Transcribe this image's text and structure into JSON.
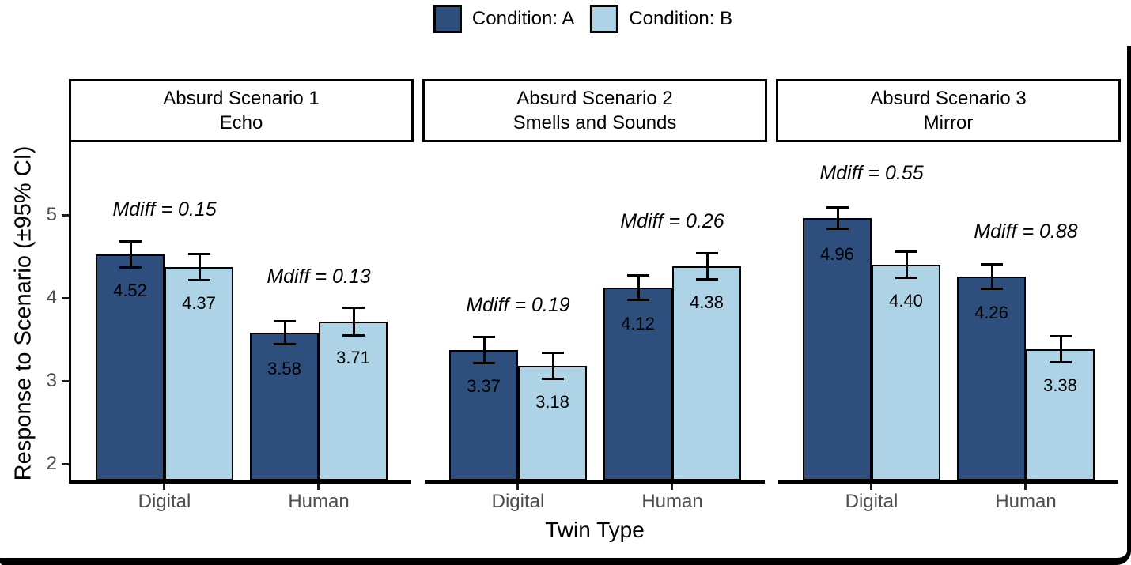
{
  "chart_data": {
    "type": "bar",
    "title": "",
    "xlabel": "Twin Type",
    "ylabel": "Response to Scenario (±95% CI)",
    "ylim": [
      1.8,
      5.88
    ],
    "yticks": [
      2,
      3,
      4,
      5
    ],
    "ytick_labels": [
      "2",
      "3",
      "4",
      "5"
    ],
    "grid": false,
    "legend_position": "top-center",
    "categories": [
      "Digital",
      "Human"
    ],
    "conditions": [
      {
        "name": "Condition: A",
        "color": "#2E4E7E"
      },
      {
        "name": "Condition: B",
        "color": "#AED3E6"
      }
    ],
    "facets": [
      {
        "title": [
          "Absurd Scenario 1",
          "Echo"
        ],
        "groups": [
          {
            "category": "Digital",
            "mdiff": "Mdiff = 0.15",
            "bars": [
              {
                "condition": "A",
                "value": 4.52,
                "label": "4.52",
                "ci": 0.15
              },
              {
                "condition": "B",
                "value": 4.37,
                "label": "4.37",
                "ci": 0.15
              }
            ]
          },
          {
            "category": "Human",
            "mdiff": "Mdiff = 0.13",
            "bars": [
              {
                "condition": "A",
                "value": 3.58,
                "label": "3.58",
                "ci": 0.13
              },
              {
                "condition": "B",
                "value": 3.71,
                "label": "3.71",
                "ci": 0.16
              }
            ]
          }
        ]
      },
      {
        "title": [
          "Absurd Scenario 2",
          "Smells and Sounds"
        ],
        "groups": [
          {
            "category": "Digital",
            "mdiff": "Mdiff = 0.19",
            "bars": [
              {
                "condition": "A",
                "value": 3.37,
                "label": "3.37",
                "ci": 0.15
              },
              {
                "condition": "B",
                "value": 3.18,
                "label": "3.18",
                "ci": 0.15
              }
            ]
          },
          {
            "category": "Human",
            "mdiff": "Mdiff = 0.26",
            "bars": [
              {
                "condition": "A",
                "value": 4.12,
                "label": "4.12",
                "ci": 0.14
              },
              {
                "condition": "B",
                "value": 4.38,
                "label": "4.38",
                "ci": 0.15
              }
            ]
          }
        ]
      },
      {
        "title": [
          "Absurd Scenario 3",
          "Mirror"
        ],
        "groups": [
          {
            "category": "Digital",
            "mdiff": "Mdiff = 0.55",
            "bars": [
              {
                "condition": "A",
                "value": 4.96,
                "label": "4.96",
                "ci": 0.12
              },
              {
                "condition": "B",
                "value": 4.4,
                "label": "4.40",
                "ci": 0.15
              }
            ]
          },
          {
            "category": "Human",
            "mdiff": "Mdiff = 0.88",
            "bars": [
              {
                "condition": "A",
                "value": 4.26,
                "label": "4.26",
                "ci": 0.14
              },
              {
                "condition": "B",
                "value": 3.38,
                "label": "3.38",
                "ci": 0.15
              }
            ]
          }
        ]
      }
    ],
    "styles": {
      "bar_outline": "#000000",
      "axis_line_color": "#000000",
      "axis_text_color": "#4d4d4d",
      "text_color": "#000000",
      "background": "#ffffff"
    }
  }
}
